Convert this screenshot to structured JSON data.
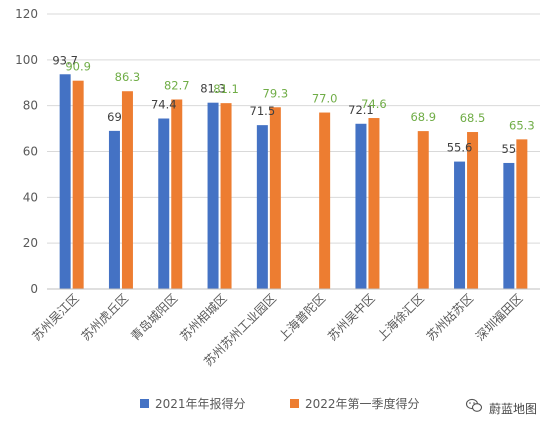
{
  "colors": {
    "series_2021": "#4472C4",
    "series_2022": "#ED7D31",
    "label_2021": "#404040",
    "label_2022": "#70AD47",
    "grid": "#D9D9D9",
    "axis": "#BFBFBF",
    "text": "#595959"
  },
  "chart_data": {
    "type": "bar",
    "title": "",
    "xlabel": "",
    "ylabel": "",
    "ylim": [
      0,
      120
    ],
    "yticks": [
      0,
      20,
      40,
      60,
      80,
      100,
      120
    ],
    "grid": true,
    "legend_position": "bottom",
    "categories": [
      "苏州吴江区",
      "苏州虎丘区",
      "青岛城阳区",
      "苏州相城区",
      "苏州苏州工业园区",
      "上海普陀区",
      "苏州吴中区",
      "上海徐汇区",
      "苏州姑苏区",
      "深圳福田区"
    ],
    "series": [
      {
        "name": "2021年年报得分",
        "color": "#4472C4",
        "values": [
          93.7,
          69,
          74.4,
          81.3,
          71.5,
          null,
          72.1,
          null,
          55.6,
          55
        ],
        "labels": [
          "93.7",
          "69",
          "74.4",
          "81.3",
          "71.5",
          "",
          "72.1",
          "",
          "55.6",
          "55"
        ]
      },
      {
        "name": "2022年第一季度得分",
        "color": "#ED7D31",
        "values": [
          90.9,
          86.3,
          82.7,
          81.1,
          79.3,
          77.0,
          74.6,
          68.9,
          68.5,
          65.3
        ],
        "labels": [
          "90.9",
          "86.3",
          "82.7",
          "81.1",
          "79.3",
          "77.0",
          "74.6",
          "68.9",
          "68.5",
          "65.3"
        ]
      }
    ]
  },
  "watermark": {
    "text": "蔚蓝地图",
    "icon": "wechat-icon"
  }
}
